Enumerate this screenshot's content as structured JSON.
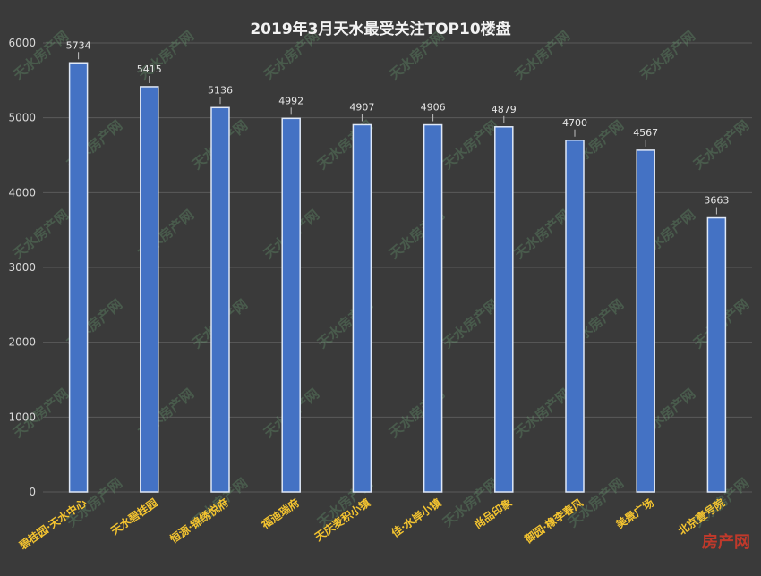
{
  "chart_data": {
    "type": "bar",
    "title": "2019年3月天水最受关注TOP10楼盘",
    "categories": [
      "碧桂园·天水中心",
      "天水碧桂园",
      "恒源·锦绣悦府",
      "福迪瑞府",
      "天庆麦积小镇",
      "佳·水岸小镇",
      "尚品印象",
      "御园·橡李春风",
      "美景广场",
      "北京壹号院"
    ],
    "values": [
      5734,
      5415,
      5136,
      4992,
      4907,
      4906,
      4879,
      4700,
      4567,
      3663
    ],
    "ylim": [
      0,
      6000
    ],
    "yticks": [
      0,
      1000,
      2000,
      3000,
      4000,
      5000,
      6000
    ],
    "grid": true,
    "colors": {
      "bar": "#4472c4",
      "bar_border": "#dfe8f7",
      "label": "#f4c430",
      "background": "#3a3a3a"
    }
  },
  "watermark": {
    "text": "天水房产网"
  },
  "corner_brand": {
    "text": "房产网"
  }
}
